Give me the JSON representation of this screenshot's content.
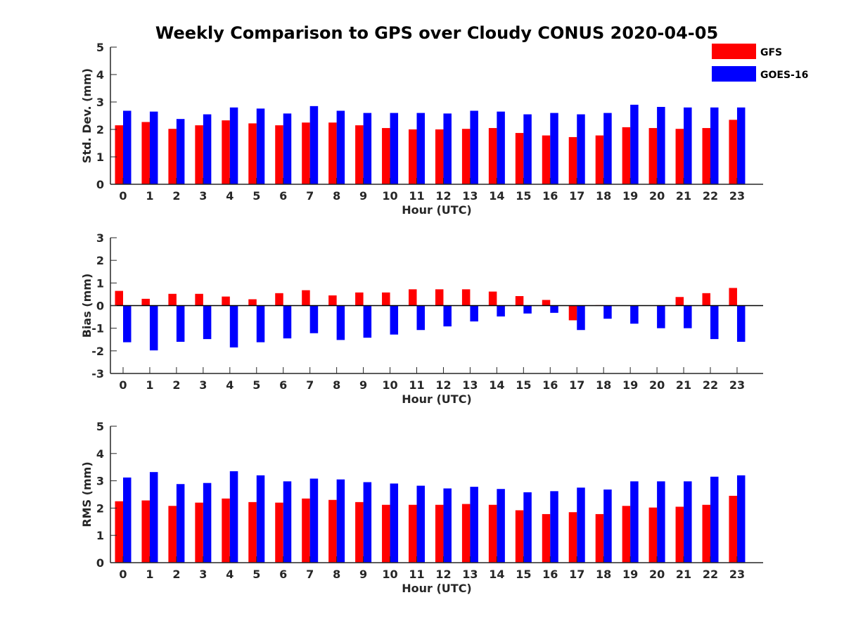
{
  "title": "Weekly Comparison to GPS over Cloudy CONUS 2020-04-05",
  "colors": {
    "GFS": "#ff0000",
    "GOES-16": "#0000ff"
  },
  "legend": {
    "placement": "top-right",
    "entries": [
      "GFS",
      "GOES-16"
    ]
  },
  "chart_data": [
    {
      "type": "bar",
      "xlabel": "Hour (UTC)",
      "ylabel": "Std. Dev. (mm)",
      "ylim": [
        0,
        5
      ],
      "yticks": [
        0,
        1,
        2,
        3,
        4,
        5
      ],
      "categories": [
        "0",
        "1",
        "2",
        "3",
        "4",
        "5",
        "6",
        "7",
        "8",
        "9",
        "10",
        "11",
        "12",
        "13",
        "14",
        "15",
        "16",
        "17",
        "18",
        "19",
        "20",
        "21",
        "22",
        "23"
      ],
      "series": [
        {
          "name": "GFS",
          "values": [
            2.15,
            2.27,
            2.02,
            2.15,
            2.33,
            2.22,
            2.15,
            2.25,
            2.25,
            2.15,
            2.05,
            2.0,
            2.0,
            2.02,
            2.05,
            1.87,
            1.78,
            1.72,
            1.78,
            2.08,
            2.05,
            2.02,
            2.05,
            2.35
          ]
        },
        {
          "name": "GOES-16",
          "values": [
            2.68,
            2.65,
            2.38,
            2.55,
            2.8,
            2.76,
            2.58,
            2.85,
            2.68,
            2.6,
            2.6,
            2.6,
            2.58,
            2.68,
            2.65,
            2.55,
            2.6,
            2.55,
            2.6,
            2.9,
            2.82,
            2.8,
            2.8,
            2.8
          ]
        }
      ]
    },
    {
      "type": "bar",
      "xlabel": "Hour (UTC)",
      "ylabel": "Bias (mm)",
      "ylim": [
        -3,
        3
      ],
      "yticks": [
        -3,
        -2,
        -1,
        0,
        1,
        2,
        3
      ],
      "categories": [
        "0",
        "1",
        "2",
        "3",
        "4",
        "5",
        "6",
        "7",
        "8",
        "9",
        "10",
        "11",
        "12",
        "13",
        "14",
        "15",
        "16",
        "17",
        "18",
        "19",
        "20",
        "21",
        "22",
        "23"
      ],
      "series": [
        {
          "name": "GFS",
          "values": [
            0.65,
            0.3,
            0.52,
            0.52,
            0.4,
            0.28,
            0.55,
            0.68,
            0.45,
            0.58,
            0.58,
            0.72,
            0.72,
            0.72,
            0.62,
            0.42,
            0.25,
            -0.65,
            0.02,
            0.0,
            0.0,
            0.38,
            0.55,
            0.78
          ]
        },
        {
          "name": "GOES-16",
          "values": [
            -1.62,
            -1.98,
            -1.6,
            -1.48,
            -1.85,
            -1.62,
            -1.45,
            -1.22,
            -1.52,
            -1.42,
            -1.28,
            -1.08,
            -0.92,
            -0.7,
            -0.48,
            -0.35,
            -0.32,
            -1.08,
            -0.58,
            -0.8,
            -1.0,
            -1.0,
            -1.48,
            -1.6
          ]
        }
      ]
    },
    {
      "type": "bar",
      "xlabel": "Hour (UTC)",
      "ylabel": "RMS (mm)",
      "ylim": [
        0,
        5
      ],
      "yticks": [
        0,
        1,
        2,
        3,
        4,
        5
      ],
      "categories": [
        "0",
        "1",
        "2",
        "3",
        "4",
        "5",
        "6",
        "7",
        "8",
        "9",
        "10",
        "11",
        "12",
        "13",
        "14",
        "15",
        "16",
        "17",
        "18",
        "19",
        "20",
        "21",
        "22",
        "23"
      ],
      "series": [
        {
          "name": "GFS",
          "values": [
            2.25,
            2.28,
            2.08,
            2.2,
            2.35,
            2.22,
            2.2,
            2.35,
            2.3,
            2.22,
            2.12,
            2.12,
            2.12,
            2.15,
            2.12,
            1.92,
            1.78,
            1.85,
            1.78,
            2.08,
            2.02,
            2.05,
            2.12,
            2.45
          ]
        },
        {
          "name": "GOES-16",
          "values": [
            3.12,
            3.32,
            2.88,
            2.92,
            3.35,
            3.2,
            2.98,
            3.08,
            3.05,
            2.95,
            2.9,
            2.82,
            2.72,
            2.78,
            2.7,
            2.58,
            2.62,
            2.75,
            2.68,
            2.98,
            2.98,
            2.98,
            3.15,
            3.2
          ]
        }
      ]
    }
  ]
}
